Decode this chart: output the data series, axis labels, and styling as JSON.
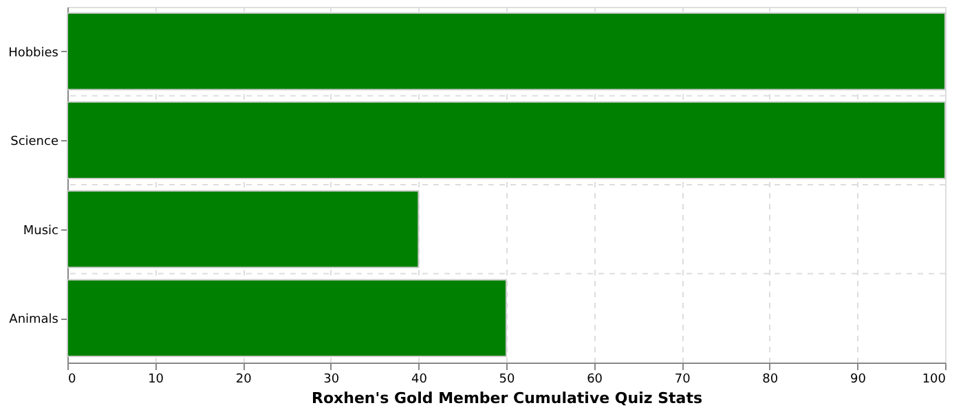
{
  "chart_data": {
    "type": "bar",
    "orientation": "horizontal",
    "xlabel": "Roxhen's Gold Member Cumulative Quiz Stats",
    "categories": [
      "Hobbies",
      "Science",
      "Music",
      "Animals"
    ],
    "values": [
      100,
      100,
      40,
      50
    ],
    "color": "#008000",
    "xlim": [
      0,
      100
    ],
    "xticks": [
      0,
      10,
      20,
      30,
      40,
      50,
      60,
      70,
      80,
      90,
      100
    ],
    "grid": true
  }
}
